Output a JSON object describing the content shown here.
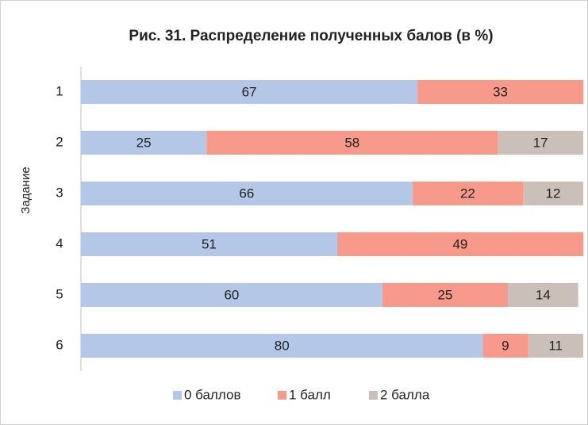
{
  "chart_data": {
    "type": "stacked-bar-horizontal",
    "title": "Рис. 31. Распределение полученных балов (в %)",
    "y_axis_label": "Задание",
    "categories": [
      "1",
      "2",
      "3",
      "4",
      "5",
      "6"
    ],
    "series": [
      {
        "name": "0 баллов",
        "color": "#b4c7e7",
        "values": [
          67,
          25,
          66,
          51,
          60,
          80
        ]
      },
      {
        "name": "1 балл",
        "color": "#f7998b",
        "values": [
          33,
          58,
          22,
          49,
          25,
          9
        ]
      },
      {
        "name": "2 балла",
        "color": "#cbbfb9",
        "values": [
          null,
          17,
          12,
          null,
          14,
          11
        ]
      }
    ],
    "xlim": [
      0,
      100
    ],
    "legend": "bottom"
  }
}
